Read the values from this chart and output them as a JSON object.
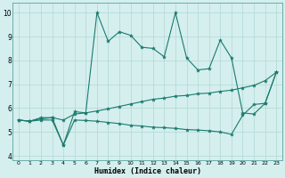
{
  "xlabel": "Humidex (Indice chaleur)",
  "bg_color": "#d5efee",
  "grid_color": "#b0d8d4",
  "line_color": "#1a7a6e",
  "xlim": [
    -0.5,
    23.5
  ],
  "ylim": [
    3.8,
    10.4
  ],
  "xticks": [
    0,
    1,
    2,
    3,
    4,
    5,
    6,
    7,
    8,
    9,
    10,
    11,
    12,
    13,
    14,
    15,
    16,
    17,
    18,
    19,
    20,
    21,
    22,
    23
  ],
  "yticks": [
    4,
    5,
    6,
    7,
    8,
    9,
    10
  ],
  "line1_x": [
    0,
    1,
    2,
    3,
    4,
    5,
    6,
    7,
    8,
    9,
    10,
    11,
    12,
    13,
    14,
    15,
    16,
    17,
    18,
    19,
    20,
    21,
    22,
    23
  ],
  "line1_y": [
    5.5,
    5.45,
    5.6,
    5.6,
    4.45,
    5.85,
    5.8,
    10.0,
    8.8,
    9.2,
    9.05,
    8.55,
    8.5,
    8.15,
    10.0,
    8.1,
    7.6,
    7.65,
    8.85,
    8.1,
    5.8,
    5.75,
    6.2,
    7.5
  ],
  "line2_x": [
    0,
    1,
    2,
    3,
    4,
    5,
    6,
    7,
    8,
    9,
    10,
    11,
    12,
    13,
    14,
    15,
    16,
    17,
    18,
    19,
    20,
    21,
    22,
    23
  ],
  "line2_y": [
    5.5,
    5.45,
    5.55,
    5.6,
    5.5,
    5.75,
    5.8,
    5.88,
    5.97,
    6.07,
    6.17,
    6.27,
    6.37,
    6.42,
    6.5,
    6.53,
    6.6,
    6.63,
    6.7,
    6.75,
    6.85,
    6.95,
    7.15,
    7.5
  ],
  "line3_x": [
    0,
    1,
    2,
    3,
    4,
    5,
    6,
    7,
    8,
    9,
    10,
    11,
    12,
    13,
    14,
    15,
    16,
    17,
    18,
    19,
    20,
    21,
    22,
    23
  ],
  "line3_y": [
    5.5,
    5.45,
    5.5,
    5.5,
    4.45,
    5.5,
    5.48,
    5.45,
    5.4,
    5.35,
    5.28,
    5.25,
    5.2,
    5.18,
    5.15,
    5.1,
    5.08,
    5.05,
    5.0,
    4.9,
    5.7,
    6.15,
    6.2,
    7.5
  ]
}
